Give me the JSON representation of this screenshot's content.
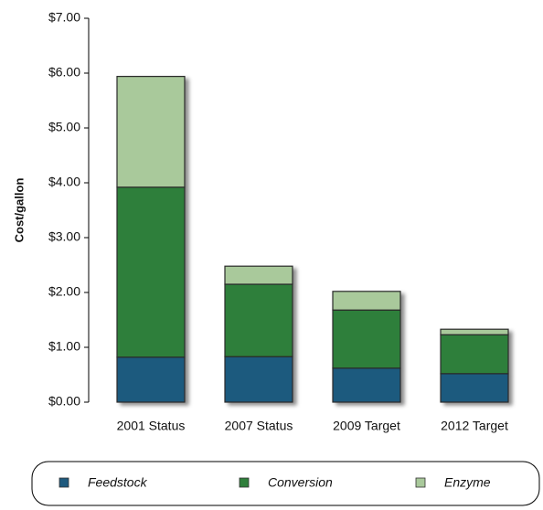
{
  "chart_data": {
    "type": "stacked_bar",
    "y_label": "Cost/gallon",
    "categories": [
      "2001 Status",
      "2007 Status",
      "2009 Target",
      "2012 Target"
    ],
    "series": [
      {
        "name": "Feedstock",
        "color": "#1f5a7e",
        "values": [
          0.82,
          0.83,
          0.62,
          0.52
        ]
      },
      {
        "name": "Conversion",
        "color": "#2f7f3b",
        "values": [
          3.1,
          1.32,
          1.06,
          0.71
        ]
      },
      {
        "name": "Enzyme",
        "color": "#a9c99b",
        "values": [
          2.02,
          0.33,
          0.34,
          0.1
        ]
      }
    ],
    "ylim": [
      0,
      7
    ],
    "yticks": [
      {
        "value": 0,
        "label": "$0.00"
      },
      {
        "value": 1,
        "label": "$1.00"
      },
      {
        "value": 2,
        "label": "$2.00"
      },
      {
        "value": 3,
        "label": "$3.00"
      },
      {
        "value": 4,
        "label": "$4.00"
      },
      {
        "value": 5,
        "label": "$5.00"
      },
      {
        "value": 6,
        "label": "$6.00"
      },
      {
        "value": 7,
        "label": "$7.00"
      }
    ]
  }
}
